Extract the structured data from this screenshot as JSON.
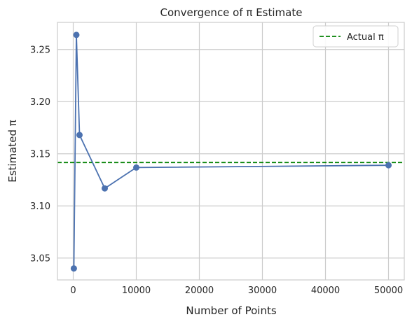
{
  "chart_data": {
    "type": "line",
    "title": "Convergence of π Estimate",
    "xlabel": "Number of Points",
    "ylabel": "Estimated π",
    "xlim": [
      -2500,
      52500
    ],
    "ylim": [
      3.029,
      3.276
    ],
    "xticks": [
      0,
      10000,
      20000,
      30000,
      40000,
      50000
    ],
    "yticks": [
      3.05,
      3.1,
      3.15,
      3.2,
      3.25
    ],
    "ytick_labels": [
      "3.05",
      "3.10",
      "3.15",
      "3.20",
      "3.25"
    ],
    "grid": true,
    "legend": {
      "position": "top-right",
      "entries": [
        "Actual π"
      ]
    },
    "series": [
      {
        "color": "#4c72b0",
        "marker": "circle",
        "x": [
          100,
          500,
          1000,
          5000,
          10000,
          50000
        ],
        "y": [
          3.04,
          3.264,
          3.168,
          3.1168,
          3.1368,
          3.13896
        ]
      }
    ],
    "reference_line": {
      "name": "Actual π",
      "y": 3.14159,
      "color": "#008000",
      "style": "dashed"
    }
  }
}
